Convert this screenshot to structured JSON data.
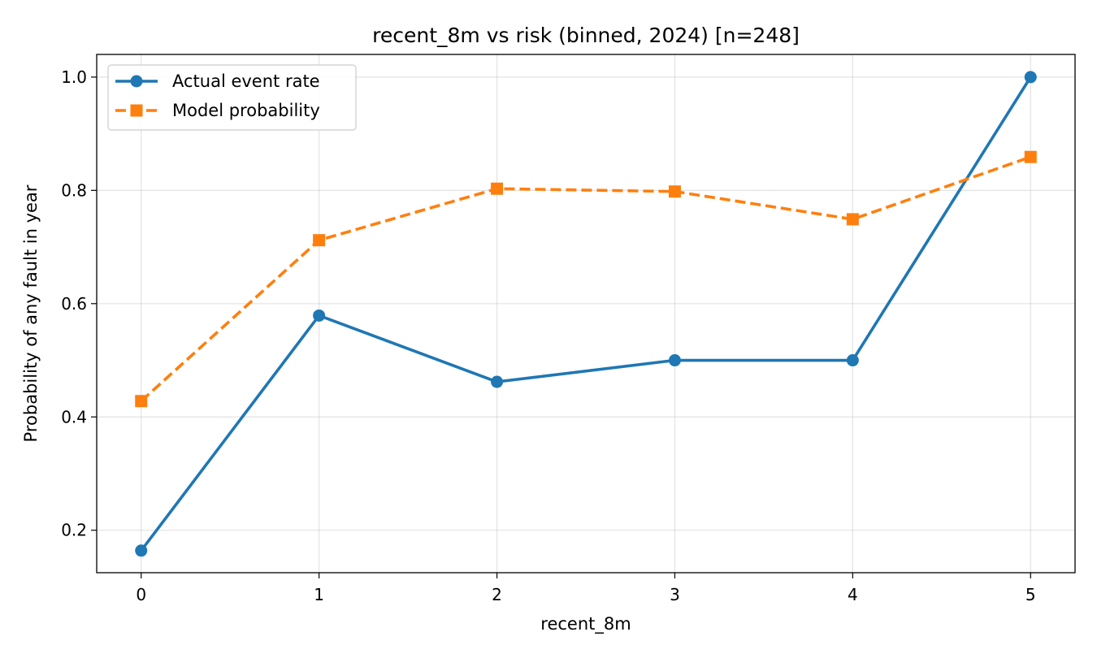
{
  "chart_data": {
    "type": "line",
    "title": "recent_8m vs risk (binned, 2024)  [n=248]",
    "xlabel": "recent_8m",
    "ylabel": "Probability of any fault in year",
    "x": [
      0,
      1,
      2,
      3,
      4,
      5
    ],
    "xticks": [
      "0",
      "1",
      "2",
      "3",
      "4",
      "5"
    ],
    "yticks": [
      "0.2",
      "0.4",
      "0.6",
      "0.8",
      "1.0"
    ],
    "xlim": [
      -0.25,
      5.25
    ],
    "ylim": [
      0.125,
      1.04
    ],
    "grid": true,
    "legend_position": "upper-left",
    "series": [
      {
        "name": "Actual event rate",
        "values": [
          0.164,
          0.579,
          0.462,
          0.5,
          0.5,
          1.0
        ],
        "color": "#1f77b4",
        "marker": "circle",
        "linestyle": "solid"
      },
      {
        "name": "Model probability",
        "values": [
          0.428,
          0.712,
          0.803,
          0.798,
          0.749,
          0.859
        ],
        "color": "#ff7f0e",
        "marker": "square",
        "linestyle": "dashed"
      }
    ]
  }
}
